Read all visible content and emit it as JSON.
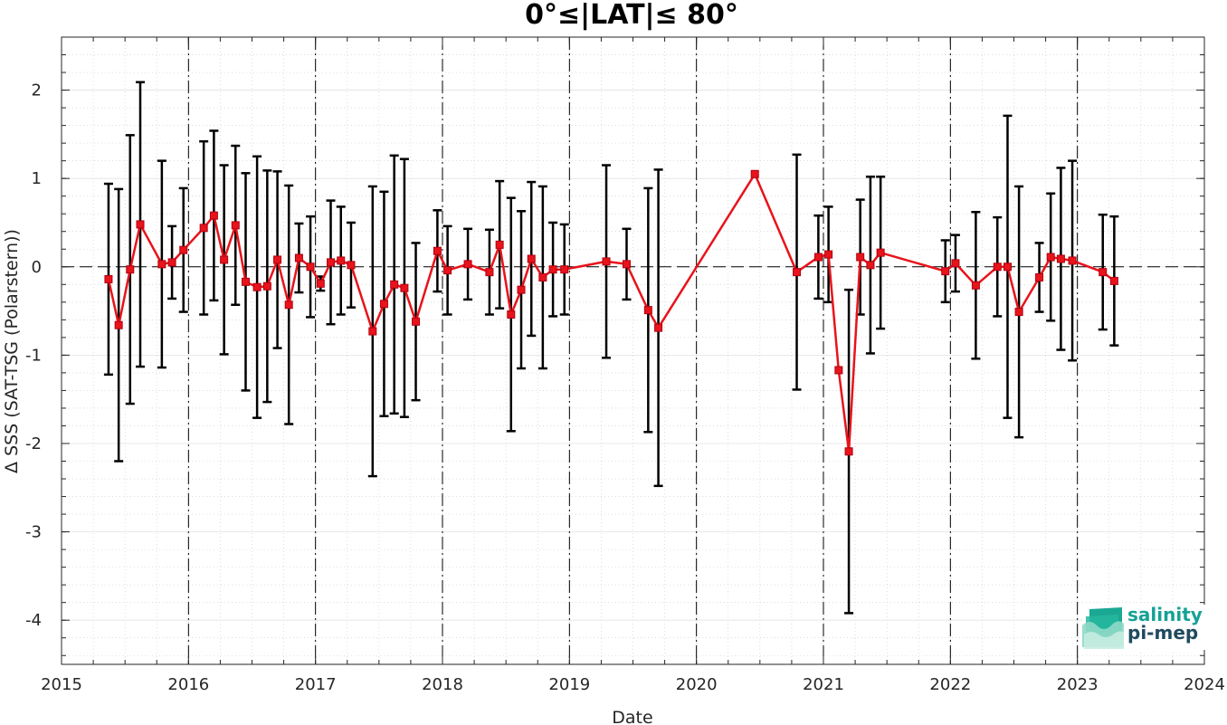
{
  "chart_data": {
    "type": "scatter",
    "title": "0°≤|LAT|≤ 80°",
    "xlabel": "Date",
    "ylabel": "Δ SSS (SAT-TSG (Polarstern))",
    "xlim": [
      2015,
      2024
    ],
    "ylim": [
      -4.5,
      2.6
    ],
    "xticks": [
      2015,
      2016,
      2017,
      2018,
      2019,
      2020,
      2021,
      2022,
      2023,
      2024
    ],
    "yticks": [
      -4,
      -3,
      -2,
      -1,
      0,
      1,
      2
    ],
    "grid": true,
    "year_markers": [
      2016,
      2017,
      2018,
      2019,
      2020,
      2021,
      2022,
      2023
    ],
    "zero_line": 0,
    "series": [
      {
        "color": "#e8131b",
        "errorbar_color": "#000000",
        "points": [
          {
            "x": 2015.37,
            "y": -0.14,
            "err": 1.08
          },
          {
            "x": 2015.45,
            "y": -0.66,
            "err": 1.54
          },
          {
            "x": 2015.54,
            "y": -0.03,
            "err": 1.52
          },
          {
            "x": 2015.62,
            "y": 0.48,
            "err": 1.61
          },
          {
            "x": 2015.79,
            "y": 0.03,
            "err": 1.17
          },
          {
            "x": 2015.87,
            "y": 0.05,
            "err": 0.41
          },
          {
            "x": 2015.96,
            "y": 0.19,
            "err": 0.7
          },
          {
            "x": 2016.12,
            "y": 0.44,
            "err": 0.98
          },
          {
            "x": 2016.2,
            "y": 0.58,
            "err": 0.96
          },
          {
            "x": 2016.28,
            "y": 0.08,
            "err": 1.07
          },
          {
            "x": 2016.37,
            "y": 0.47,
            "err": 0.9
          },
          {
            "x": 2016.45,
            "y": -0.17,
            "err": 1.23
          },
          {
            "x": 2016.54,
            "y": -0.23,
            "err": 1.48
          },
          {
            "x": 2016.62,
            "y": -0.22,
            "err": 1.31
          },
          {
            "x": 2016.7,
            "y": 0.08,
            "err": 1.0
          },
          {
            "x": 2016.79,
            "y": -0.43,
            "err": 1.35
          },
          {
            "x": 2016.87,
            "y": 0.1,
            "err": 0.39
          },
          {
            "x": 2016.96,
            "y": 0.0,
            "err": 0.57
          },
          {
            "x": 2017.04,
            "y": -0.19,
            "err": 0.08
          },
          {
            "x": 2017.12,
            "y": 0.05,
            "err": 0.7
          },
          {
            "x": 2017.2,
            "y": 0.07,
            "err": 0.61
          },
          {
            "x": 2017.28,
            "y": 0.02,
            "err": 0.48
          },
          {
            "x": 2017.45,
            "y": -0.73,
            "err": 1.64
          },
          {
            "x": 2017.54,
            "y": -0.42,
            "err": 1.27
          },
          {
            "x": 2017.62,
            "y": -0.2,
            "err": 1.46
          },
          {
            "x": 2017.7,
            "y": -0.24,
            "err": 1.46
          },
          {
            "x": 2017.79,
            "y": -0.62,
            "err": 0.89
          },
          {
            "x": 2017.96,
            "y": 0.18,
            "err": 0.46
          },
          {
            "x": 2018.04,
            "y": -0.04,
            "err": 0.5
          },
          {
            "x": 2018.2,
            "y": 0.03,
            "err": 0.4
          },
          {
            "x": 2018.37,
            "y": -0.06,
            "err": 0.48
          },
          {
            "x": 2018.45,
            "y": 0.25,
            "err": 0.72
          },
          {
            "x": 2018.54,
            "y": -0.54,
            "err": 1.32
          },
          {
            "x": 2018.62,
            "y": -0.26,
            "err": 0.89
          },
          {
            "x": 2018.7,
            "y": 0.09,
            "err": 0.87
          },
          {
            "x": 2018.79,
            "y": -0.12,
            "err": 1.03
          },
          {
            "x": 2018.87,
            "y": -0.03,
            "err": 0.53
          },
          {
            "x": 2018.96,
            "y": -0.03,
            "err": 0.51
          },
          {
            "x": 2019.29,
            "y": 0.06,
            "err": 1.09
          },
          {
            "x": 2019.45,
            "y": 0.03,
            "err": 0.4
          },
          {
            "x": 2019.62,
            "y": -0.49,
            "err": 1.38
          },
          {
            "x": 2019.7,
            "y": -0.69,
            "err": 1.79
          },
          {
            "x": 2020.46,
            "y": 1.05,
            "err": 0.0
          },
          {
            "x": 2020.79,
            "y": -0.06,
            "err": 1.33
          },
          {
            "x": 2020.96,
            "y": 0.11,
            "err": 0.47
          },
          {
            "x": 2021.04,
            "y": 0.14,
            "err": 0.54
          },
          {
            "x": 2021.12,
            "y": -1.17,
            "err": 0.0
          },
          {
            "x": 2021.2,
            "y": -2.09,
            "err": 1.83
          },
          {
            "x": 2021.29,
            "y": 0.11,
            "err": 0.65
          },
          {
            "x": 2021.37,
            "y": 0.02,
            "err": 1.0
          },
          {
            "x": 2021.45,
            "y": 0.16,
            "err": 0.86
          },
          {
            "x": 2021.96,
            "y": -0.05,
            "err": 0.35
          },
          {
            "x": 2022.04,
            "y": 0.04,
            "err": 0.32
          },
          {
            "x": 2022.2,
            "y": -0.21,
            "err": 0.83
          },
          {
            "x": 2022.37,
            "y": 0.0,
            "err": 0.56
          },
          {
            "x": 2022.45,
            "y": 0.0,
            "err": 1.71
          },
          {
            "x": 2022.54,
            "y": -0.51,
            "err": 1.42
          },
          {
            "x": 2022.7,
            "y": -0.12,
            "err": 0.39
          },
          {
            "x": 2022.79,
            "y": 0.11,
            "err": 0.72
          },
          {
            "x": 2022.87,
            "y": 0.09,
            "err": 1.03
          },
          {
            "x": 2022.96,
            "y": 0.07,
            "err": 1.13
          },
          {
            "x": 2023.2,
            "y": -0.06,
            "err": 0.65
          },
          {
            "x": 2023.29,
            "y": -0.16,
            "err": 0.73
          }
        ]
      }
    ]
  },
  "logo": {
    "line1": "salinity",
    "line2": "pi-mep"
  }
}
